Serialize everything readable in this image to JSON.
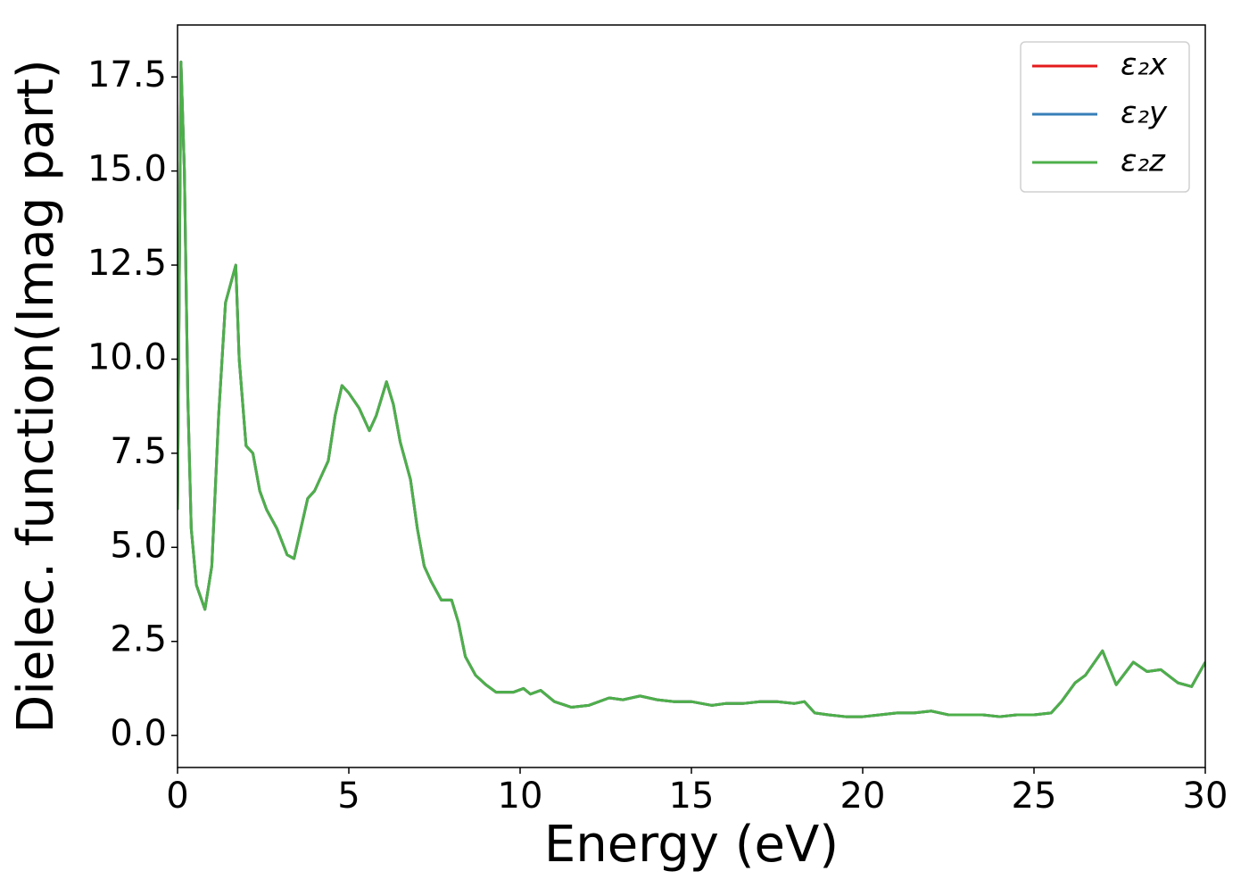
{
  "chart_data": {
    "type": "line",
    "xlabel": "Energy (eV)",
    "ylabel": "Dielec. function(Imag part)",
    "x": [
      0.0,
      0.1,
      0.2,
      0.3,
      0.4,
      0.55,
      0.8,
      1.0,
      1.2,
      1.4,
      1.55,
      1.7,
      1.8,
      2.0,
      2.2,
      2.4,
      2.6,
      2.9,
      3.2,
      3.4,
      3.6,
      3.8,
      4.0,
      4.2,
      4.4,
      4.6,
      4.8,
      5.0,
      5.3,
      5.6,
      5.8,
      6.1,
      6.3,
      6.5,
      6.8,
      7.0,
      7.2,
      7.4,
      7.7,
      8.0,
      8.2,
      8.4,
      8.7,
      9.0,
      9.3,
      9.8,
      10.1,
      10.3,
      10.6,
      11.0,
      11.5,
      12.0,
      12.6,
      13.0,
      13.5,
      14.0,
      14.5,
      15.0,
      15.6,
      16.0,
      16.5,
      17.0,
      17.5,
      18.0,
      18.3,
      18.6,
      19.0,
      19.5,
      20.0,
      20.5,
      21.0,
      21.5,
      22.0,
      22.5,
      23.0,
      23.5,
      24.0,
      24.5,
      25.0,
      25.5,
      25.8,
      26.2,
      26.5,
      27.0,
      27.4,
      27.9,
      28.3,
      28.7,
      29.2,
      29.6,
      30.0
    ],
    "series": [
      {
        "name": "ε₂x",
        "color": "#e41a1c",
        "values": [
          6.0,
          17.9,
          15.0,
          9.0,
          5.5,
          4.0,
          3.35,
          4.5,
          8.5,
          11.5,
          12.0,
          12.5,
          10.0,
          7.7,
          7.5,
          6.5,
          6.0,
          5.5,
          4.8,
          4.7,
          5.5,
          6.3,
          6.5,
          6.9,
          7.3,
          8.5,
          9.3,
          9.1,
          8.7,
          8.1,
          8.5,
          9.4,
          8.8,
          7.8,
          6.8,
          5.5,
          4.5,
          4.1,
          3.6,
          3.6,
          3.0,
          2.1,
          1.6,
          1.35,
          1.15,
          1.15,
          1.25,
          1.1,
          1.2,
          0.9,
          0.75,
          0.8,
          1.0,
          0.95,
          1.05,
          0.95,
          0.9,
          0.9,
          0.8,
          0.85,
          0.85,
          0.9,
          0.9,
          0.85,
          0.9,
          0.6,
          0.55,
          0.5,
          0.5,
          0.55,
          0.6,
          0.6,
          0.65,
          0.55,
          0.55,
          0.55,
          0.5,
          0.55,
          0.55,
          0.6,
          0.9,
          1.4,
          1.6,
          2.25,
          1.35,
          1.95,
          1.7,
          1.75,
          1.4,
          1.3,
          1.95
        ]
      },
      {
        "name": "ε₂y",
        "color": "#377eb8",
        "values": [
          6.0,
          17.9,
          15.0,
          9.0,
          5.5,
          4.0,
          3.35,
          4.5,
          8.5,
          11.5,
          12.0,
          12.5,
          10.0,
          7.7,
          7.5,
          6.5,
          6.0,
          5.5,
          4.8,
          4.7,
          5.5,
          6.3,
          6.5,
          6.9,
          7.3,
          8.5,
          9.3,
          9.1,
          8.7,
          8.1,
          8.5,
          9.4,
          8.8,
          7.8,
          6.8,
          5.5,
          4.5,
          4.1,
          3.6,
          3.6,
          3.0,
          2.1,
          1.6,
          1.35,
          1.15,
          1.15,
          1.25,
          1.1,
          1.2,
          0.9,
          0.75,
          0.8,
          1.0,
          0.95,
          1.05,
          0.95,
          0.9,
          0.9,
          0.8,
          0.85,
          0.85,
          0.9,
          0.9,
          0.85,
          0.9,
          0.6,
          0.55,
          0.5,
          0.5,
          0.55,
          0.6,
          0.6,
          0.65,
          0.55,
          0.55,
          0.55,
          0.5,
          0.55,
          0.55,
          0.6,
          0.9,
          1.4,
          1.6,
          2.25,
          1.35,
          1.95,
          1.7,
          1.75,
          1.4,
          1.3,
          1.95
        ]
      },
      {
        "name": "ε₂z",
        "color": "#4daf4a",
        "values": [
          6.0,
          17.9,
          15.0,
          9.0,
          5.5,
          4.0,
          3.35,
          4.5,
          8.5,
          11.5,
          12.0,
          12.5,
          10.0,
          7.7,
          7.5,
          6.5,
          6.0,
          5.5,
          4.8,
          4.7,
          5.5,
          6.3,
          6.5,
          6.9,
          7.3,
          8.5,
          9.3,
          9.1,
          8.7,
          8.1,
          8.5,
          9.4,
          8.8,
          7.8,
          6.8,
          5.5,
          4.5,
          4.1,
          3.6,
          3.6,
          3.0,
          2.1,
          1.6,
          1.35,
          1.15,
          1.15,
          1.25,
          1.1,
          1.2,
          0.9,
          0.75,
          0.8,
          1.0,
          0.95,
          1.05,
          0.95,
          0.9,
          0.9,
          0.8,
          0.85,
          0.85,
          0.9,
          0.9,
          0.85,
          0.9,
          0.6,
          0.55,
          0.5,
          0.5,
          0.55,
          0.6,
          0.6,
          0.65,
          0.55,
          0.55,
          0.55,
          0.5,
          0.55,
          0.55,
          0.6,
          0.9,
          1.4,
          1.6,
          2.25,
          1.35,
          1.95,
          1.7,
          1.75,
          1.4,
          1.3,
          1.95
        ]
      }
    ],
    "xlim": [
      0,
      30
    ],
    "xticks": [
      0,
      5,
      10,
      15,
      20,
      25,
      30
    ],
    "ylim": [
      -0.85,
      18.88
    ],
    "yticks": [
      {
        "value": 0,
        "label": "0.0"
      },
      {
        "value": 2.5,
        "label": "2.5"
      },
      {
        "value": 5,
        "label": "5.0"
      },
      {
        "value": 7.5,
        "label": "7.5"
      },
      {
        "value": 10,
        "label": "10.0"
      },
      {
        "value": 12.5,
        "label": "12.5"
      },
      {
        "value": 15,
        "label": "15.0"
      },
      {
        "value": 17.5,
        "label": "17.5"
      }
    ],
    "legend": "upper-right",
    "grid": false
  }
}
